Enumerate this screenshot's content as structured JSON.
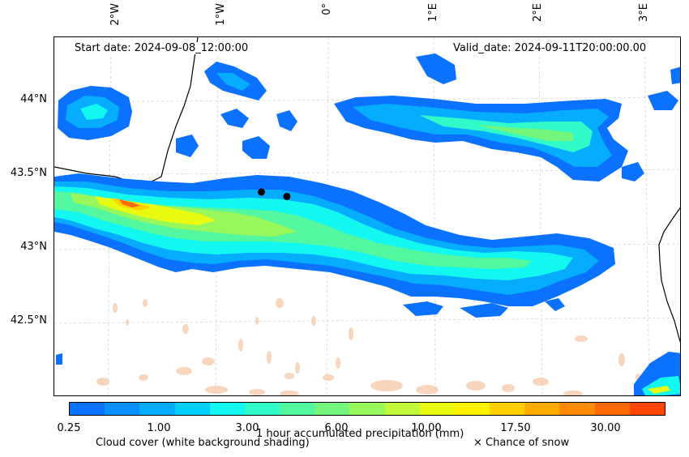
{
  "header": {
    "start_date": "Start date: 2024-09-08_12:00:00",
    "valid_date": "Valid_date: 2024-09-11T20:00:00.00"
  },
  "axes": {
    "lon_ticks": [
      "2°W",
      "1°W",
      "0°",
      "1°E",
      "2°E",
      "3°E"
    ],
    "lat_ticks": [
      "44°N",
      "43.5°N",
      "43°N",
      "42.5°N"
    ]
  },
  "colorbar": {
    "label": "1 hour accumulated precipitation (mm)",
    "tick_labels": [
      "0.25",
      "1.00",
      "3.00",
      "6.00",
      "10.00",
      "17.50",
      "30.00"
    ],
    "colors": [
      "#0a72ff",
      "#0890ff",
      "#05acff",
      "#03cfff",
      "#12f7f0",
      "#30fac8",
      "#52f7a0",
      "#74f57c",
      "#98f75a",
      "#c2f83a",
      "#e8fa10",
      "#fff200",
      "#ffd000",
      "#ffab00",
      "#ff8a05",
      "#ff6a05",
      "#ff4505"
    ]
  },
  "legend": {
    "cloud_cover": "Cloud cover (white background shading)",
    "snow": "× Chance of snow"
  },
  "markers": [
    {
      "name": "station-marker-1",
      "lon": -0.63,
      "lat": 43.39
    },
    {
      "name": "station-marker-2",
      "lon": -0.39,
      "lat": 43.36
    }
  ]
}
